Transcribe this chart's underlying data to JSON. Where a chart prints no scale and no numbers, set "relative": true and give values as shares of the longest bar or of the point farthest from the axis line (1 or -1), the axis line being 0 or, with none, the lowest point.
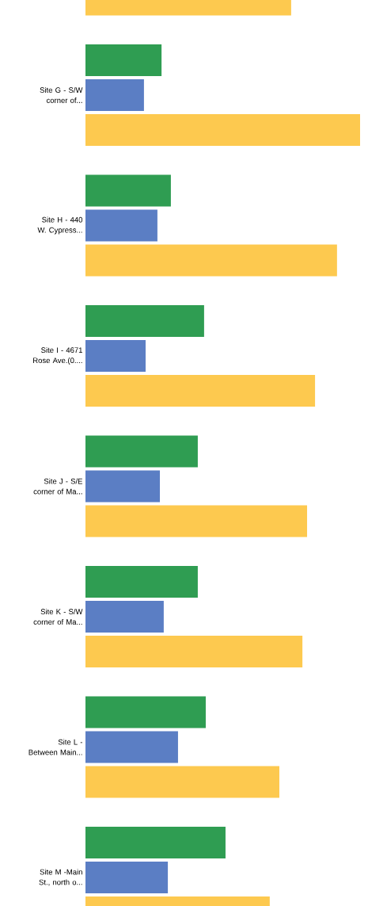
{
  "chart_data": {
    "type": "bar",
    "orientation": "horizontal",
    "relative": true,
    "categories": [
      null,
      "Site G - S/W corner of...",
      "Site H - 440 W. Cypress...",
      "Site I - 4671 Rose Ave.(0....",
      "Site J - S/E corner of Ma...",
      "Site K - S/W corner of Ma...",
      "Site L - Between Main...",
      "Site M -Main St., north o..."
    ],
    "series": [
      {
        "color": "#2f9d52",
        "values": [
          null,
          0.277,
          0.311,
          0.432,
          0.409,
          0.409,
          0.438,
          0.51
        ]
      },
      {
        "color": "#5b7ec4",
        "values": [
          null,
          0.213,
          0.262,
          0.219,
          0.271,
          0.285,
          0.337,
          0.3
        ]
      },
      {
        "color": "#fdc94f",
        "values": [
          0.749,
          1.0,
          0.916,
          0.836,
          0.807,
          0.79,
          0.706,
          0.671
        ]
      }
    ]
  }
}
